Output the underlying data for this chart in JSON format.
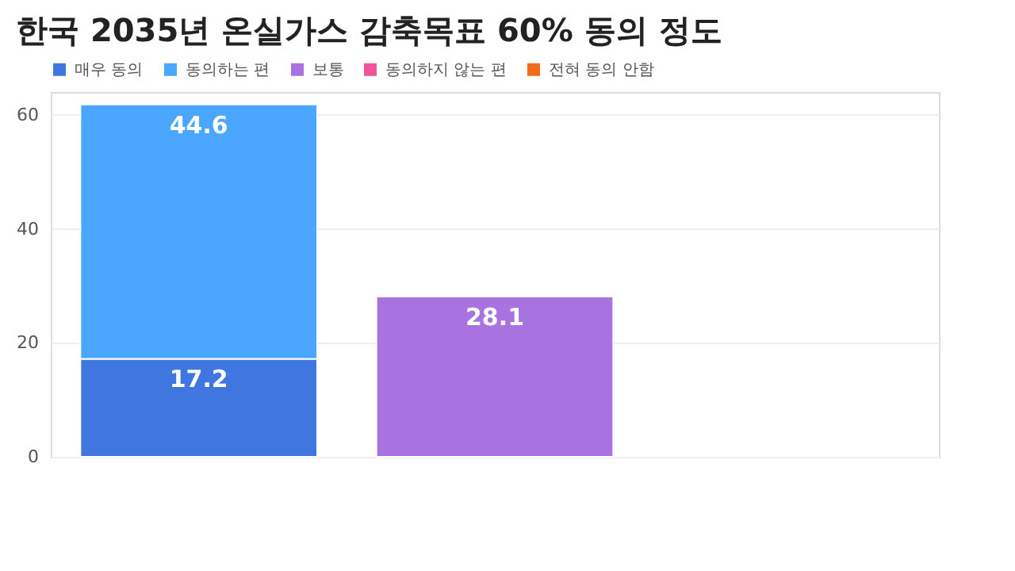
{
  "chart_data": {
    "type": "bar",
    "title": "한국 2035년 온실가스 감축목표 60% 동의 정도",
    "stacked": true,
    "data_labels": true,
    "categories": [
      null,
      null,
      null
    ],
    "series": [
      {
        "name": "매우 동의",
        "color": "#3f76e0",
        "values": [
          17.2,
          null,
          null
        ]
      },
      {
        "name": "동의하는 편",
        "color": "#4aa6ff",
        "values": [
          44.6,
          null,
          null
        ]
      },
      {
        "name": "보통",
        "color": "#a872e0",
        "values": [
          null,
          28.1,
          null
        ]
      },
      {
        "name": "동의하지 않는 편",
        "color": "#f0559a",
        "values": [
          null,
          null,
          null
        ]
      },
      {
        "name": "전혀 동의 안함",
        "color": "#f56a1a",
        "values": [
          null,
          null,
          null
        ]
      }
    ],
    "ylim": [
      0,
      64
    ],
    "yticks": [
      0,
      20,
      40,
      60
    ],
    "grid": "y",
    "legend": "top left",
    "tick_labels": "y"
  }
}
